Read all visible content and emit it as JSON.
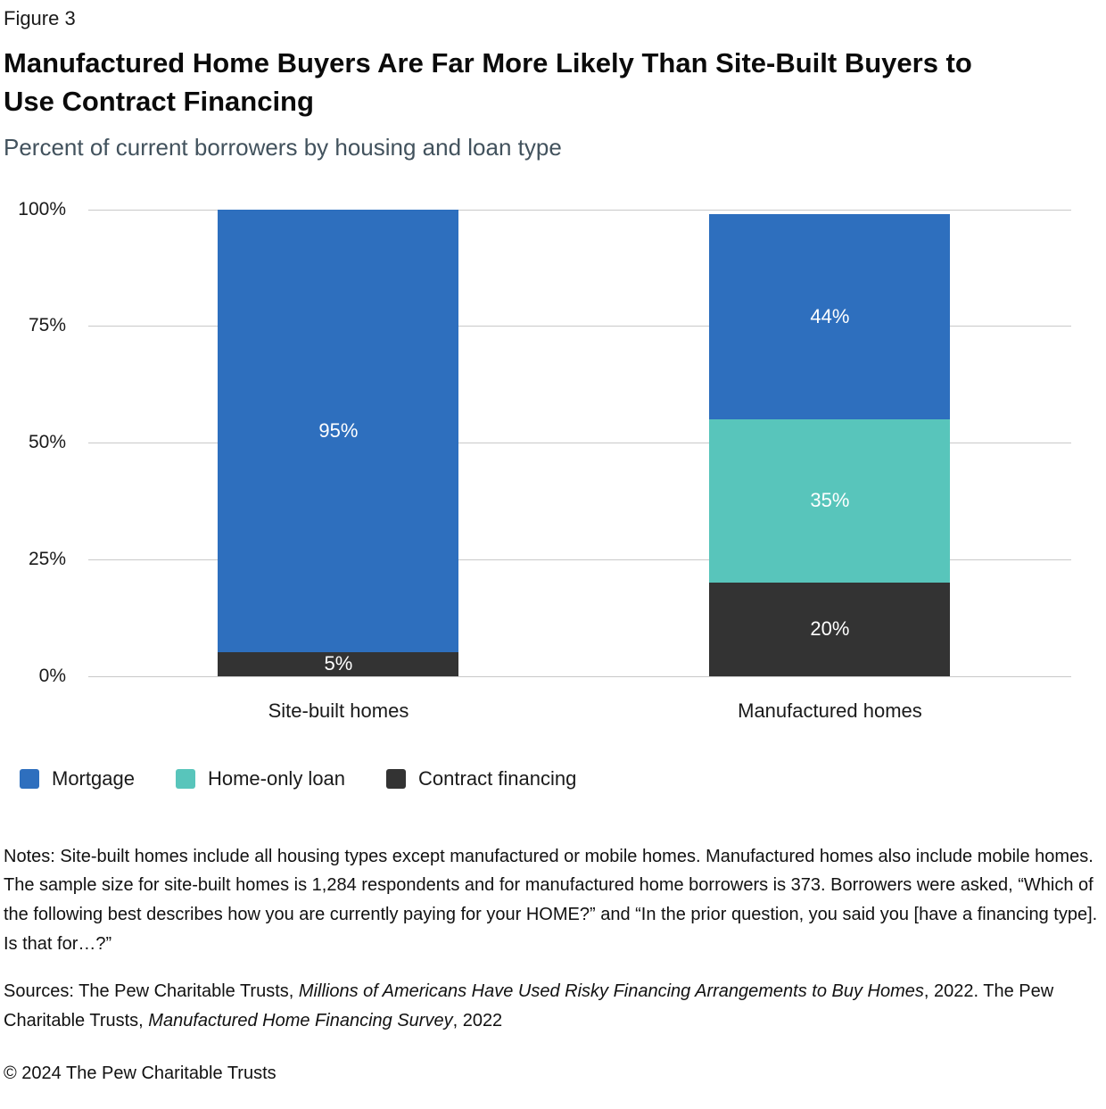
{
  "figure_label": "Figure 3",
  "title": "Manufactured Home Buyers Are Far More Likely Than Site-Built Buyers to Use Contract Financing",
  "subtitle": "Percent of current borrowers by housing and loan type",
  "chart_data": {
    "type": "bar",
    "stacked": true,
    "title": "Manufactured Home Buyers Are Far More Likely Than Site-Built Buyers to Use Contract Financing",
    "subtitle": "Percent of current borrowers by housing and loan type",
    "categories": [
      "Site-built homes",
      "Manufactured homes"
    ],
    "series": [
      {
        "name": "Mortgage",
        "color": "#2e6fbe",
        "values": [
          95,
          44
        ]
      },
      {
        "name": "Home-only loan",
        "color": "#58c5bb",
        "values": [
          0,
          35
        ]
      },
      {
        "name": "Contract financing",
        "color": "#333333",
        "values": [
          5,
          20
        ]
      }
    ],
    "value_suffix": "%",
    "data_labels": [
      "95%",
      "5%",
      "44%",
      "35%",
      "20%"
    ],
    "xlabel": "",
    "ylabel": "",
    "ylim": [
      0,
      100
    ],
    "ytick_values": [
      0,
      25,
      50,
      75,
      100
    ],
    "ytick_labels": [
      "0%",
      "25%",
      "50%",
      "75%",
      "100%"
    ],
    "grid": true,
    "legend_position": "bottom",
    "gridline_color": "#c9c9c9",
    "label_color": "#ffffff"
  },
  "notes": "Notes: Site-built homes include all housing types except manufactured or mobile homes. Manufactured homes also include mobile homes. The sample size for site-built homes is 1,284 respondents and for manufactured home borrowers is 373. Borrowers were asked, “Which of the following best describes how you are currently paying for your HOME?” and “In the prior question, you said you [have a financing type]. Is that for…?”",
  "sources": {
    "parts": [
      {
        "text": "Sources: The Pew Charitable Trusts, ",
        "italic": false
      },
      {
        "text": "Millions of Americans Have Used Risky Financing Arrangements to Buy Homes",
        "italic": true
      },
      {
        "text": ", 2022. The Pew Charitable Trusts, ",
        "italic": false
      },
      {
        "text": "Manufactured Home Financing Survey",
        "italic": true
      },
      {
        "text": ", 2022",
        "italic": false
      }
    ]
  },
  "copyright": "© 2024 The Pew Charitable Trusts"
}
